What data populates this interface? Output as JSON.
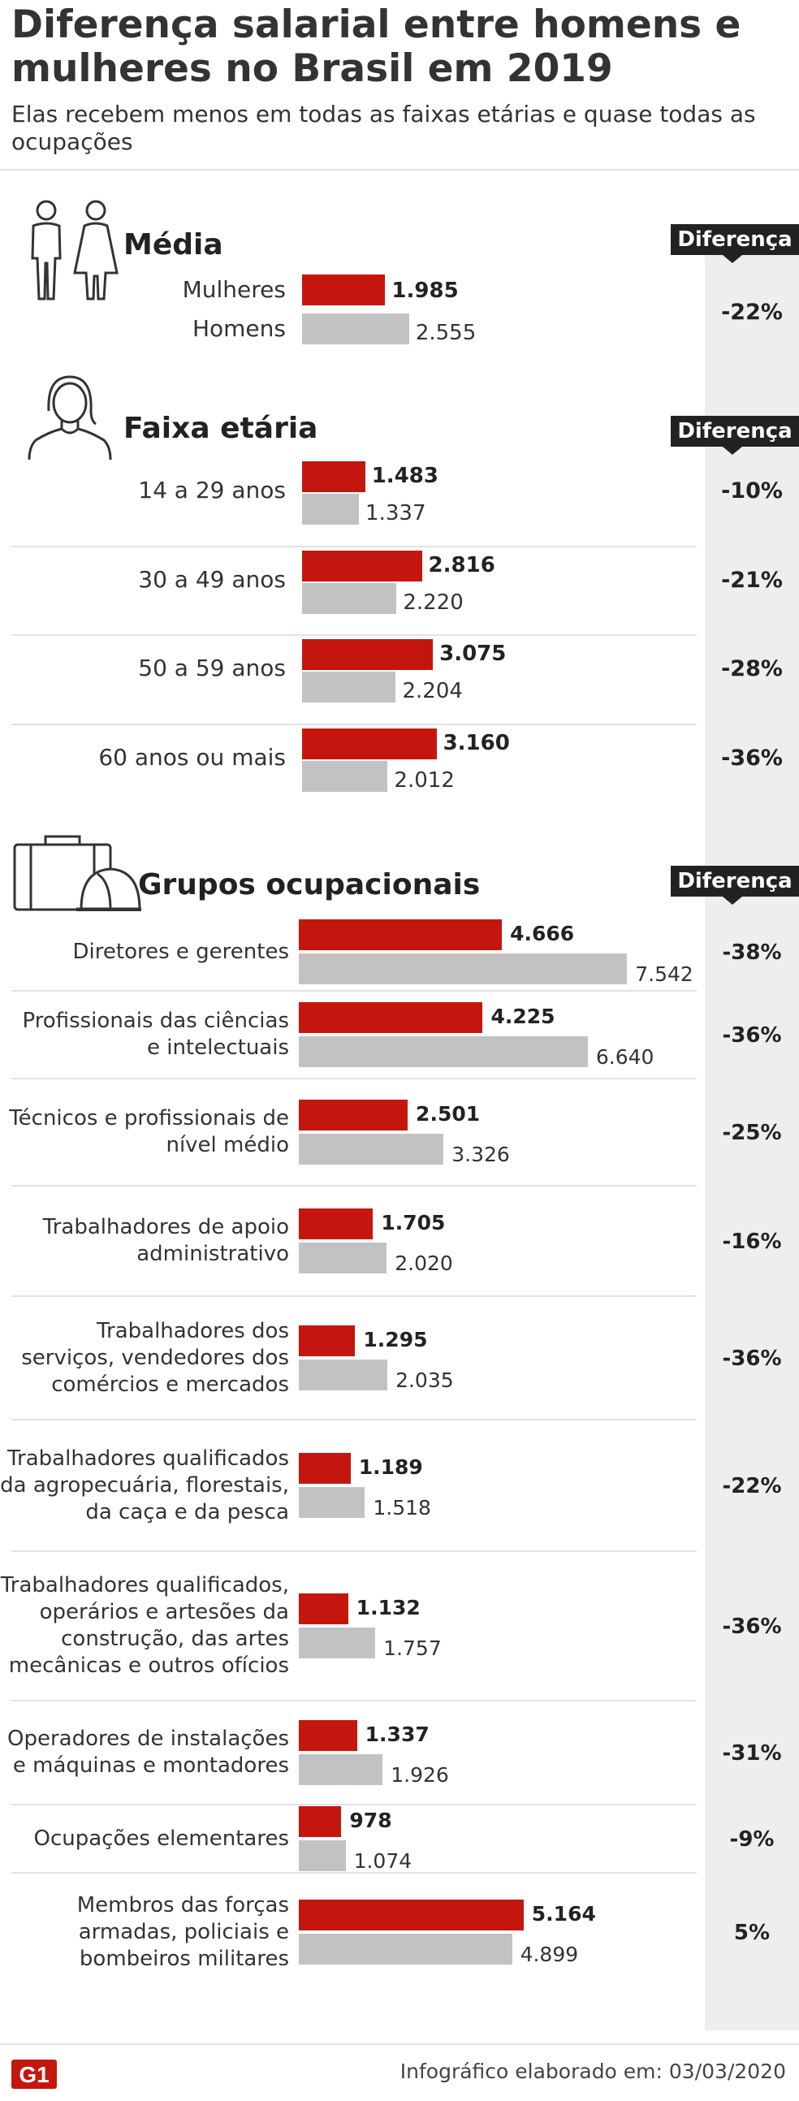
{
  "title": "Diferença salarial entre homens e mulheres no Brasil em 2019",
  "subtitle": "Elas recebem menos em todas as faixas etárias e quase todas as ocupações",
  "difference_label": "Diferença",
  "colors": {
    "mulheres": "#c4160f",
    "homens": "#c2c2c2",
    "diff_column": "#eeeeee"
  },
  "icons": [
    "people-icon",
    "woman-icon",
    "briefcase-hardhat-icon",
    "g1-logo"
  ],
  "footer": {
    "logo": "G1",
    "credit": "Infográfico elaborado em: 03/03/2020"
  },
  "chart_data": [
    {
      "type": "bar",
      "title": "Média",
      "orientation": "horizontal",
      "categories": [
        "Mulheres",
        "Homens"
      ],
      "values": [
        1985,
        2555
      ],
      "value_labels": [
        "1.985",
        "2.555"
      ],
      "difference": "-22%"
    },
    {
      "type": "bar",
      "title": "Faixa etária",
      "orientation": "horizontal",
      "categories": [
        "14 a 29 anos",
        "30 a 49 anos",
        "50 a 59 anos",
        "60 anos ou mais"
      ],
      "series": [
        {
          "values": [
            1483,
            2816,
            3075,
            3160
          ],
          "labels": [
            "1.483",
            "2.816",
            "3.075",
            "3.160"
          ]
        },
        {
          "values": [
            1337,
            2220,
            2204,
            2012
          ],
          "labels": [
            "1.337",
            "2.220",
            "2.204",
            "2.012"
          ]
        }
      ],
      "differences": [
        "-10%",
        "-21%",
        "-28%",
        "-36%"
      ]
    },
    {
      "type": "bar",
      "title": "Grupos ocupacionais",
      "orientation": "horizontal",
      "categories": [
        "Diretores e gerentes",
        "Profissionais das ciências e intelectuais",
        "Técnicos e profissionais de nível médio",
        "Trabalhadores de apoio administrativo",
        "Trabalhadores dos serviços, vendedores dos comércios e mercados",
        "Trabalhadores qualificados da agropecuária, florestais, da caça e da pesca",
        "Trabalhadores qualificados, operários e artesões da construção, das artes mecânicas e outros ofícios",
        "Operadores de instalações e máquinas e montadores",
        "Ocupações elementares",
        "Membros das forças armadas, policiais e bombeiros militares"
      ],
      "category_lines": [
        [
          "Diretores e gerentes"
        ],
        [
          "Profissionais das ciências",
          "e intelectuais"
        ],
        [
          "Técnicos e profissionais de",
          "nível médio"
        ],
        [
          "Trabalhadores de apoio",
          "administrativo"
        ],
        [
          "Trabalhadores dos",
          "serviços, vendedores dos",
          "comércios e mercados"
        ],
        [
          "Trabalhadores qualificados",
          "da agropecuária, florestais,",
          "da caça e da pesca"
        ],
        [
          "Trabalhadores qualificados,",
          "operários e artesões da",
          "construção, das artes",
          "mecânicas e outros ofícios"
        ],
        [
          "Operadores de instalações",
          "e máquinas e montadores"
        ],
        [
          "Ocupações elementares"
        ],
        [
          "Membros das forças",
          "armadas, policiais e",
          "bombeiros militares"
        ]
      ],
      "series": [
        {
          "values": [
            4666,
            4225,
            2501,
            1705,
            1295,
            1189,
            1132,
            1337,
            978,
            5164
          ],
          "labels": [
            "4.666",
            "4.225",
            "2.501",
            "1.705",
            "1.295",
            "1.189",
            "1.132",
            "1.337",
            "978",
            "5.164"
          ]
        },
        {
          "values": [
            7542,
            6640,
            3326,
            2020,
            2035,
            1518,
            1757,
            1926,
            1074,
            4899
          ],
          "labels": [
            "7.542",
            "6.640",
            "3.326",
            "2.020",
            "2.035",
            "1.518",
            "1.757",
            "1.926",
            "1.074",
            "4.899"
          ]
        }
      ],
      "differences": [
        "-38%",
        "-36%",
        "-25%",
        "-16%",
        "-36%",
        "-22%",
        "-36%",
        "-31%",
        "-9%",
        "5%"
      ]
    }
  ]
}
